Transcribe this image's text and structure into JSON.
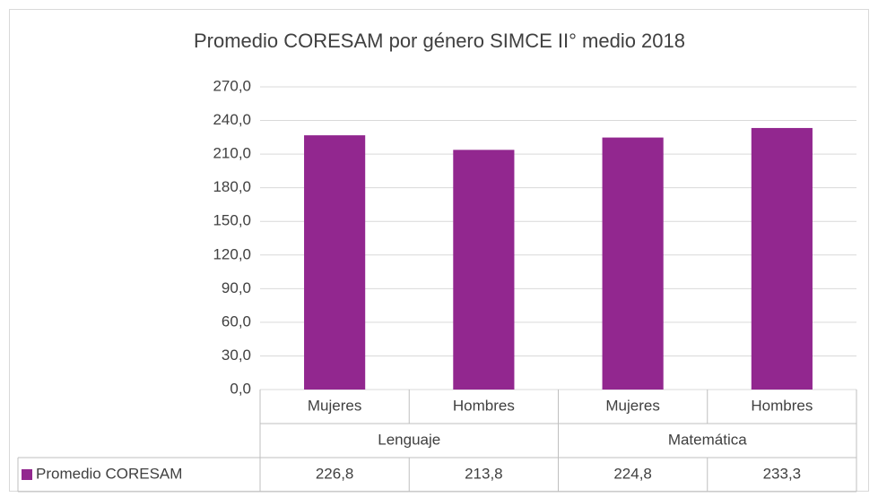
{
  "chart_data": {
    "type": "bar",
    "title": "Promedio CORESAM por género SIMCE II° medio 2018",
    "categories": [
      "Mujeres",
      "Hombres",
      "Mujeres",
      "Hombres"
    ],
    "group_labels": [
      "Lenguaje",
      "Matemática"
    ],
    "series": [
      {
        "name": "Promedio CORESAM",
        "color": "#92278f",
        "values": [
          226.8,
          213.8,
          224.8,
          233.3
        ],
        "value_labels": [
          "226,8",
          "213,8",
          "224,8",
          "233,3"
        ]
      }
    ],
    "ylim": [
      0,
      270
    ],
    "yticks": [
      {
        "value": 0,
        "label": "0,0"
      },
      {
        "value": 30,
        "label": "30,0"
      },
      {
        "value": 60,
        "label": "60,0"
      },
      {
        "value": 90,
        "label": "90,0"
      },
      {
        "value": 120,
        "label": "120,0"
      },
      {
        "value": 150,
        "label": "150,0"
      },
      {
        "value": 180,
        "label": "180,0"
      },
      {
        "value": 210,
        "label": "210,0"
      },
      {
        "value": 240,
        "label": "240,0"
      },
      {
        "value": 270,
        "label": "270,0"
      }
    ],
    "grid": true
  }
}
